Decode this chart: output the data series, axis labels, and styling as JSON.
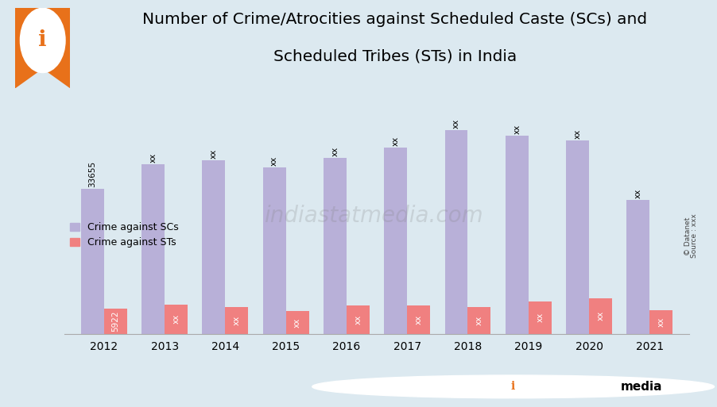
{
  "title_line1": "Number of Crime/Atrocities against Scheduled Caste (SCs) and",
  "title_line2": "Scheduled Tribes (STs) in India",
  "years": [
    "2012",
    "2013",
    "2014",
    "2015",
    "2016",
    "2017",
    "2018",
    "2019",
    "2020",
    "2021"
  ],
  "sc_values": [
    33655,
    39408,
    40300,
    38670,
    40801,
    43203,
    47338,
    45935,
    44839,
    31000
  ],
  "st_values": [
    5922,
    6793,
    6220,
    5200,
    6568,
    6568,
    6243,
    7570,
    8272,
    5532
  ],
  "sc_labels": [
    "33655",
    "xx",
    "xx",
    "xx",
    "xx",
    "xx",
    "xx",
    "xx",
    "xx",
    "xx"
  ],
  "st_labels": [
    "5922",
    "xx",
    "xx",
    "xx",
    "xx",
    "xx",
    "xx",
    "xx",
    "xx",
    "xx"
  ],
  "sc_color": "#b8b0d8",
  "st_color": "#f08080",
  "bg_color": "#dce9f0",
  "legend_sc": "Crime against SCs",
  "legend_st": "Crime against STs",
  "bar_width": 0.38,
  "ylim": [
    0,
    52000
  ],
  "title_fontsize": 14.5,
  "label_fontsize": 7.5,
  "orange_color": "#e8711a",
  "bottom_bar_color": "#e87020"
}
